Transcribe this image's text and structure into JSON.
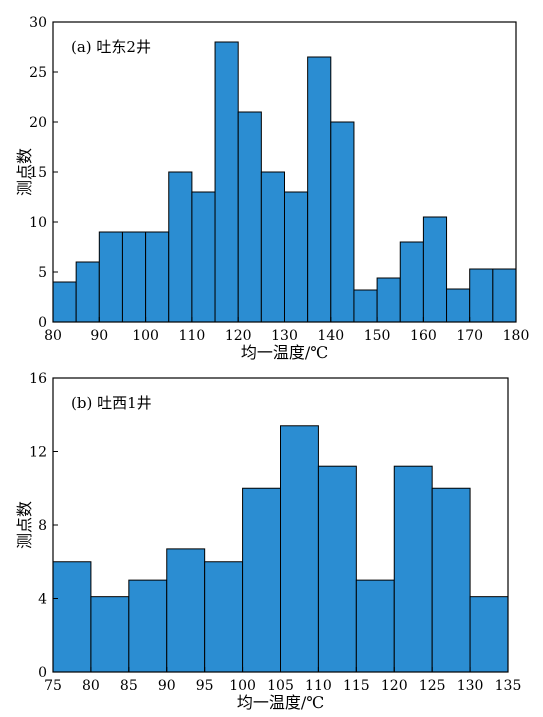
{
  "chart_data": [
    {
      "type": "bar",
      "panel_label": "(a) 吐东2井",
      "xlabel": "均一温度/℃",
      "ylabel": "测点数",
      "bin_edges": [
        80,
        85,
        90,
        95,
        100,
        105,
        110,
        115,
        120,
        125,
        130,
        135,
        140,
        145,
        150,
        155,
        160,
        165,
        170,
        175,
        180
      ],
      "values": [
        4,
        6,
        9,
        9,
        9,
        15,
        13,
        28,
        21,
        15,
        13,
        26.5,
        20,
        3.2,
        4.4,
        8,
        10.5,
        3.3,
        5.3,
        5.3
      ],
      "xlim": [
        80,
        180
      ],
      "ylim": [
        0,
        30
      ],
      "xticks": [
        "80",
        "90",
        "100",
        "110",
        "120",
        "130",
        "140",
        "150",
        "160",
        "170",
        "180"
      ],
      "yticks": [
        "0",
        "5",
        "10",
        "15",
        "20",
        "25",
        "30"
      ],
      "bar_color": "#2b8dd2",
      "grid": false
    },
    {
      "type": "bar",
      "panel_label": "(b) 吐西1井",
      "xlabel": "均一温度/℃",
      "ylabel": "测点数",
      "bin_edges": [
        75,
        80,
        85,
        90,
        95,
        100,
        105,
        110,
        115,
        120,
        125,
        130,
        135
      ],
      "values": [
        6,
        4.1,
        5,
        6.7,
        6,
        10,
        13.4,
        11.2,
        5,
        11.2,
        10,
        4.1
      ],
      "xlim": [
        75,
        135
      ],
      "ylim": [
        0,
        16
      ],
      "xticks": [
        "75",
        "80",
        "85",
        "90",
        "95",
        "100",
        "105",
        "110",
        "115",
        "120",
        "125",
        "130",
        "135"
      ],
      "yticks": [
        "0",
        "4",
        "8",
        "12",
        "16"
      ],
      "bar_color": "#2b8dd2",
      "grid": false
    }
  ]
}
